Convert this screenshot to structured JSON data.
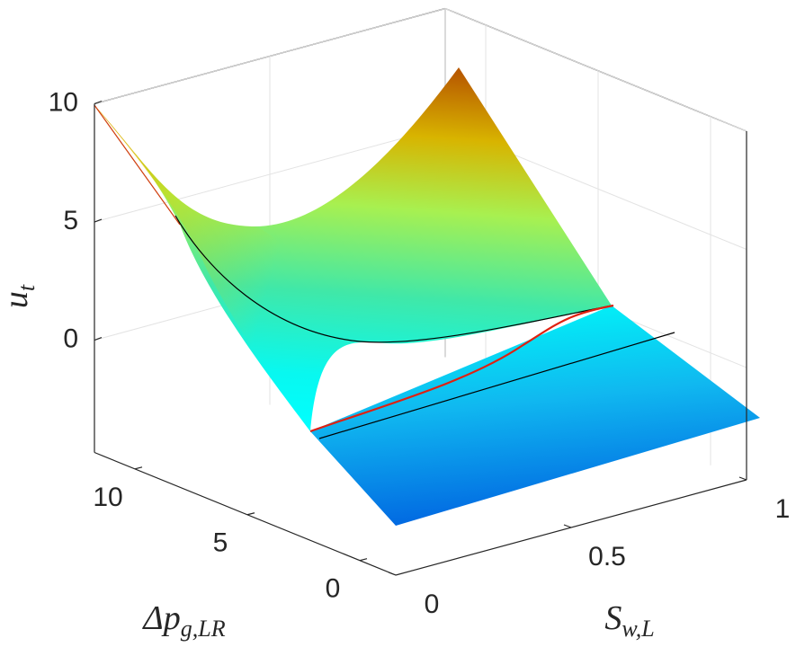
{
  "chart_data": {
    "type": "surface",
    "xlabel": {
      "text": "Δp",
      "subscript": "g,LR"
    },
    "ylabel": {
      "text": "S",
      "subscript": "w,L"
    },
    "zlabel": {
      "text": "u",
      "subscript": "t"
    },
    "xlim": [
      -1.6,
      11.8
    ],
    "xticks": [
      0,
      5,
      10
    ],
    "ylim": [
      0,
      1
    ],
    "yticks": [
      0,
      0.5,
      1
    ],
    "zlim": [
      -4.75,
      10
    ],
    "zticks": [
      0,
      5,
      10
    ],
    "grid": true
  }
}
